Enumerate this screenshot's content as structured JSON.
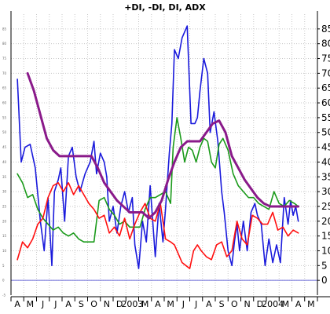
{
  "chart_data": {
    "type": "line",
    "title": "+DI, -DI, DI, ADX",
    "ylim": [
      -5,
      90
    ],
    "yticks": [
      0,
      5,
      10,
      15,
      20,
      25,
      30,
      35,
      40,
      45,
      50,
      55,
      60,
      65,
      70,
      75,
      80,
      85
    ],
    "xlabels": [
      "A",
      "M",
      "J",
      "J",
      "A",
      "S",
      "O",
      "N",
      "D",
      "2003",
      "M",
      "A",
      "M",
      "J",
      "J",
      "A",
      "S",
      "O",
      "N",
      "D",
      "2004",
      "M",
      "A",
      "M"
    ],
    "grid": true,
    "reference_line": 0,
    "colors": {
      "plus_di": "#1a9a1a",
      "minus_di": "#ff1010",
      "di": "#1a1adc",
      "adx": "#8a1a8a",
      "reference": "#6a6ad8"
    },
    "series": [
      {
        "key": "di",
        "x": [
          0,
          0.3,
          0.6,
          1.0,
          1.4,
          1.8,
          2.1,
          2.4,
          2.7,
          2.9,
          3.2,
          3.4,
          3.7,
          4.0,
          4.3,
          4.6,
          4.9,
          5.3,
          5.7,
          6.0,
          6.2,
          6.5,
          6.8,
          7.0,
          7.2,
          7.5,
          7.8,
          8.1,
          8.4,
          8.7,
          9.0,
          9.2,
          9.5,
          9.8,
          10.1,
          10.4,
          10.8,
          11.1,
          11.4,
          11.6,
          11.9,
          12.1,
          12.3,
          12.6,
          12.9,
          13.3,
          13.6,
          13.9,
          14.1,
          14.3,
          14.6,
          14.9,
          15.1,
          15.4,
          15.7,
          16.0,
          16.2,
          16.5,
          16.8,
          17.0,
          17.2,
          17.4,
          17.7,
          18.0,
          18.3,
          18.6,
          18.8,
          19.1,
          19.4,
          19.7,
          20.0,
          20.3,
          20.6,
          20.9,
          21.2,
          21.4,
          21.6,
          21.8,
          22.0
        ],
        "values": [
          68,
          40,
          45,
          46,
          38,
          20,
          10,
          28,
          5,
          30,
          34,
          38,
          20,
          42,
          45,
          35,
          30,
          36,
          40,
          47,
          36,
          43,
          40,
          35,
          20,
          25,
          16,
          25,
          30,
          23,
          28,
          12,
          4,
          20,
          13,
          32,
          8,
          26,
          13,
          24,
          43,
          53,
          78,
          75,
          82,
          86,
          53,
          53,
          55,
          64,
          75,
          70,
          50,
          57,
          47,
          30,
          23,
          10,
          5,
          13,
          19,
          10,
          20,
          10,
          23,
          26,
          22,
          19,
          5,
          14,
          6,
          12,
          6,
          28,
          19,
          27,
          22,
          25,
          20
        ]
      },
      {
        "key": "plus_di",
        "x": [
          0,
          0.4,
          0.8,
          1.2,
          1.6,
          2.0,
          2.4,
          2.8,
          3.2,
          3.6,
          4.0,
          4.4,
          4.8,
          5.2,
          5.6,
          6.0,
          6.4,
          6.8,
          7.2,
          7.6,
          8.0,
          8.4,
          8.8,
          9.2,
          9.6,
          10.0,
          10.4,
          10.8,
          11.2,
          11.6,
          12.0,
          12.2,
          12.5,
          12.8,
          13.1,
          13.4,
          13.7,
          14.0,
          14.3,
          14.6,
          14.9,
          15.2,
          15.5,
          15.8,
          16.1,
          16.5,
          16.9,
          17.3,
          17.7,
          18.1,
          18.5,
          18.9,
          19.3,
          19.7,
          20.1,
          20.5,
          20.9,
          21.3,
          21.7,
          22.0
        ],
        "values": [
          36,
          33,
          28,
          29,
          24,
          21,
          19,
          17,
          18,
          16,
          15,
          16,
          14,
          13,
          13,
          13,
          27,
          28,
          24,
          22,
          19,
          20,
          18,
          18,
          18,
          24,
          28,
          28,
          29,
          30,
          26,
          45,
          55,
          48,
          40,
          45,
          44,
          40,
          45,
          48,
          47,
          40,
          38,
          46,
          48,
          44,
          36,
          32,
          30,
          28,
          28,
          26,
          25,
          24,
          30,
          26,
          25,
          27,
          26,
          25
        ]
      },
      {
        "key": "minus_di",
        "x": [
          0,
          0.4,
          0.8,
          1.2,
          1.6,
          2.0,
          2.4,
          2.8,
          3.2,
          3.6,
          4.0,
          4.4,
          4.8,
          5.2,
          5.6,
          6.0,
          6.4,
          6.8,
          7.2,
          7.6,
          8.0,
          8.4,
          8.8,
          9.2,
          9.6,
          10.0,
          10.4,
          10.8,
          11.2,
          11.6,
          12.0,
          12.3,
          12.6,
          12.9,
          13.2,
          13.5,
          13.8,
          14.1,
          14.4,
          14.8,
          15.2,
          15.6,
          16.0,
          16.4,
          16.8,
          17.2,
          17.6,
          18.0,
          18.4,
          18.8,
          19.2,
          19.6,
          20.0,
          20.4,
          20.8,
          21.2,
          21.6,
          22.0
        ],
        "values": [
          7,
          13,
          11,
          14,
          19,
          21,
          28,
          32,
          33,
          30,
          33,
          29,
          32,
          29,
          26,
          24,
          21,
          22,
          16,
          18,
          15,
          21,
          14,
          19,
          23,
          26,
          21,
          20,
          26,
          14,
          13,
          12,
          9,
          6,
          5,
          4,
          10,
          12,
          10,
          8,
          7,
          12,
          13,
          8,
          10,
          20,
          14,
          12,
          22,
          21,
          19,
          19,
          23,
          17,
          18,
          15,
          17,
          16
        ]
      },
      {
        "key": "adx",
        "x": [
          0.8,
          1.3,
          1.8,
          2.3,
          2.8,
          3.3,
          3.8,
          4.3,
          4.8,
          5.3,
          5.8,
          6.3,
          6.8,
          7.3,
          7.8,
          8.3,
          8.8,
          9.3,
          9.8,
          10.3,
          10.8,
          11.3,
          11.8,
          12.3,
          12.8,
          13.3,
          13.8,
          14.3,
          14.8,
          15.3,
          15.8,
          16.3,
          16.8,
          17.3,
          17.8,
          18.3,
          18.8,
          19.3,
          19.8,
          20.3,
          20.8,
          21.3,
          22.0
        ],
        "values": [
          70,
          64,
          56,
          48,
          44,
          42,
          42,
          42,
          42,
          42,
          42,
          38,
          33,
          30,
          27,
          25,
          23,
          23,
          23,
          21,
          23,
          27,
          34,
          40,
          45,
          47,
          47,
          47,
          50,
          53,
          54,
          50,
          42,
          38,
          34,
          31,
          28,
          26,
          25,
          25,
          25,
          25,
          25
        ]
      }
    ]
  }
}
